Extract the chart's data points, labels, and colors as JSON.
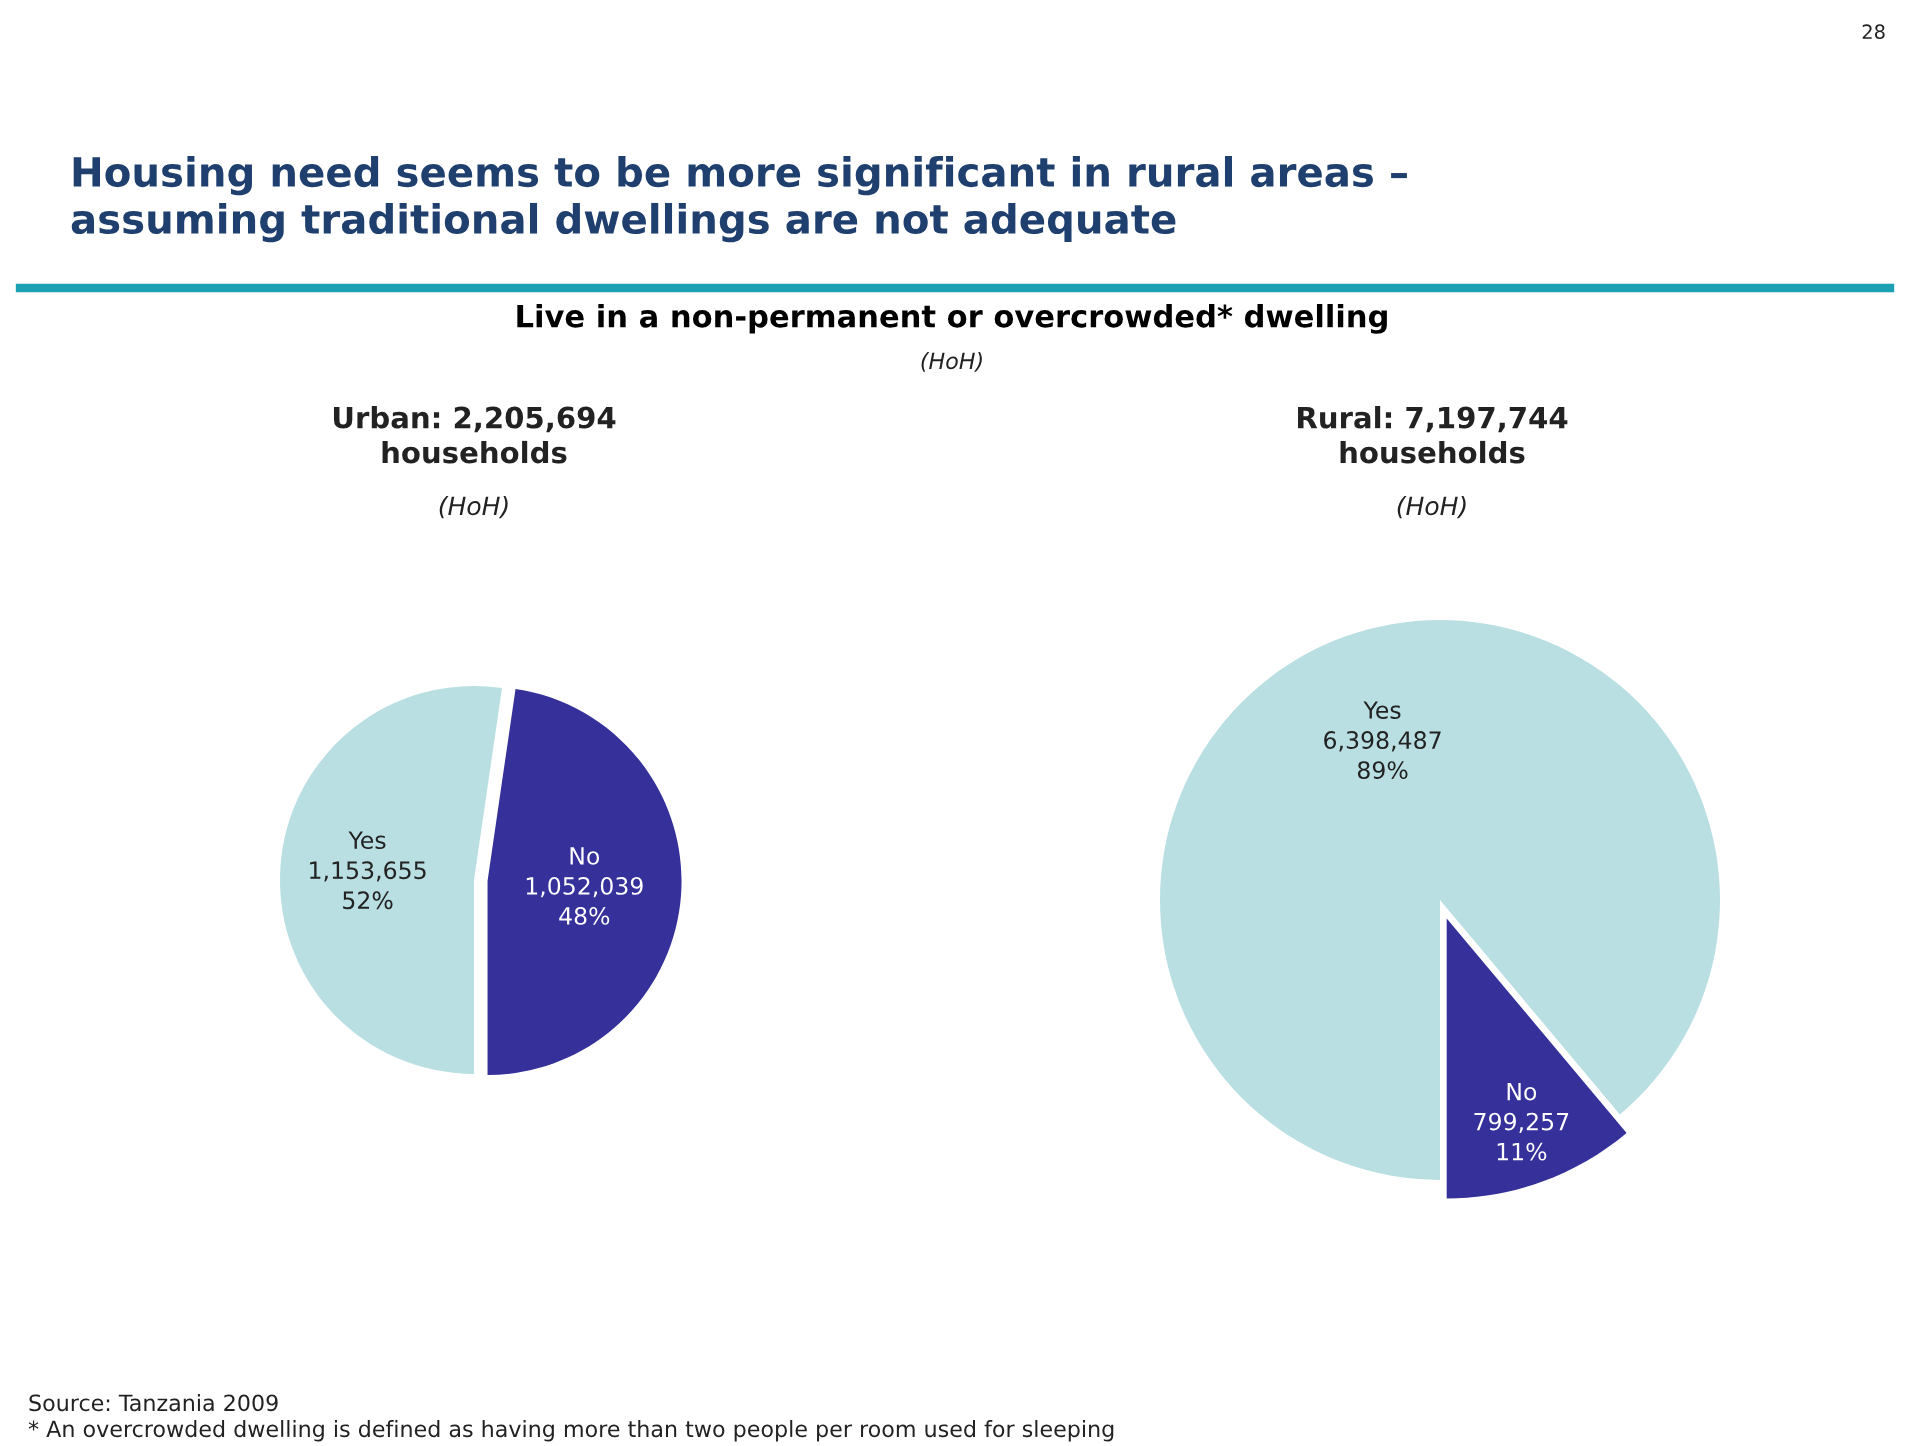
{
  "chart_data": [
    {
      "type": "pie",
      "title": "Urban: 2,205,694\nhouseholds",
      "subtitle": "(HoH)",
      "categories": [
        "Yes",
        "No"
      ],
      "values": [
        1153655,
        1052039
      ],
      "colors": [
        "#b9dfe2",
        "#35309a"
      ],
      "value_labels": [
        "1,153,655\n52%",
        "1,052,039\n48%"
      ],
      "annotations": [
        "Housing need seems to be more significant in rural areas –\nassuming traditional dwellings are not adequate",
        "28",
        "Live in a non-permanent or overcrowded* dwelling",
        "(HoH)",
        "Source: Tanzania 2009",
        "* An overcrowded dwelling is defined as having more than two people per room used for sleeping"
      ]
    },
    {
      "type": "pie",
      "title": "Rural: 7,197,744\nhouseholds",
      "subtitle": "(HoH)",
      "categories": [
        "Yes",
        "No"
      ],
      "values": [
        6398487,
        799257
      ],
      "colors": [
        "#b9dfe2",
        "#35309a"
      ],
      "value_labels": [
        "6,398,487\n89%",
        "799,257\n11%"
      ]
    }
  ]
}
